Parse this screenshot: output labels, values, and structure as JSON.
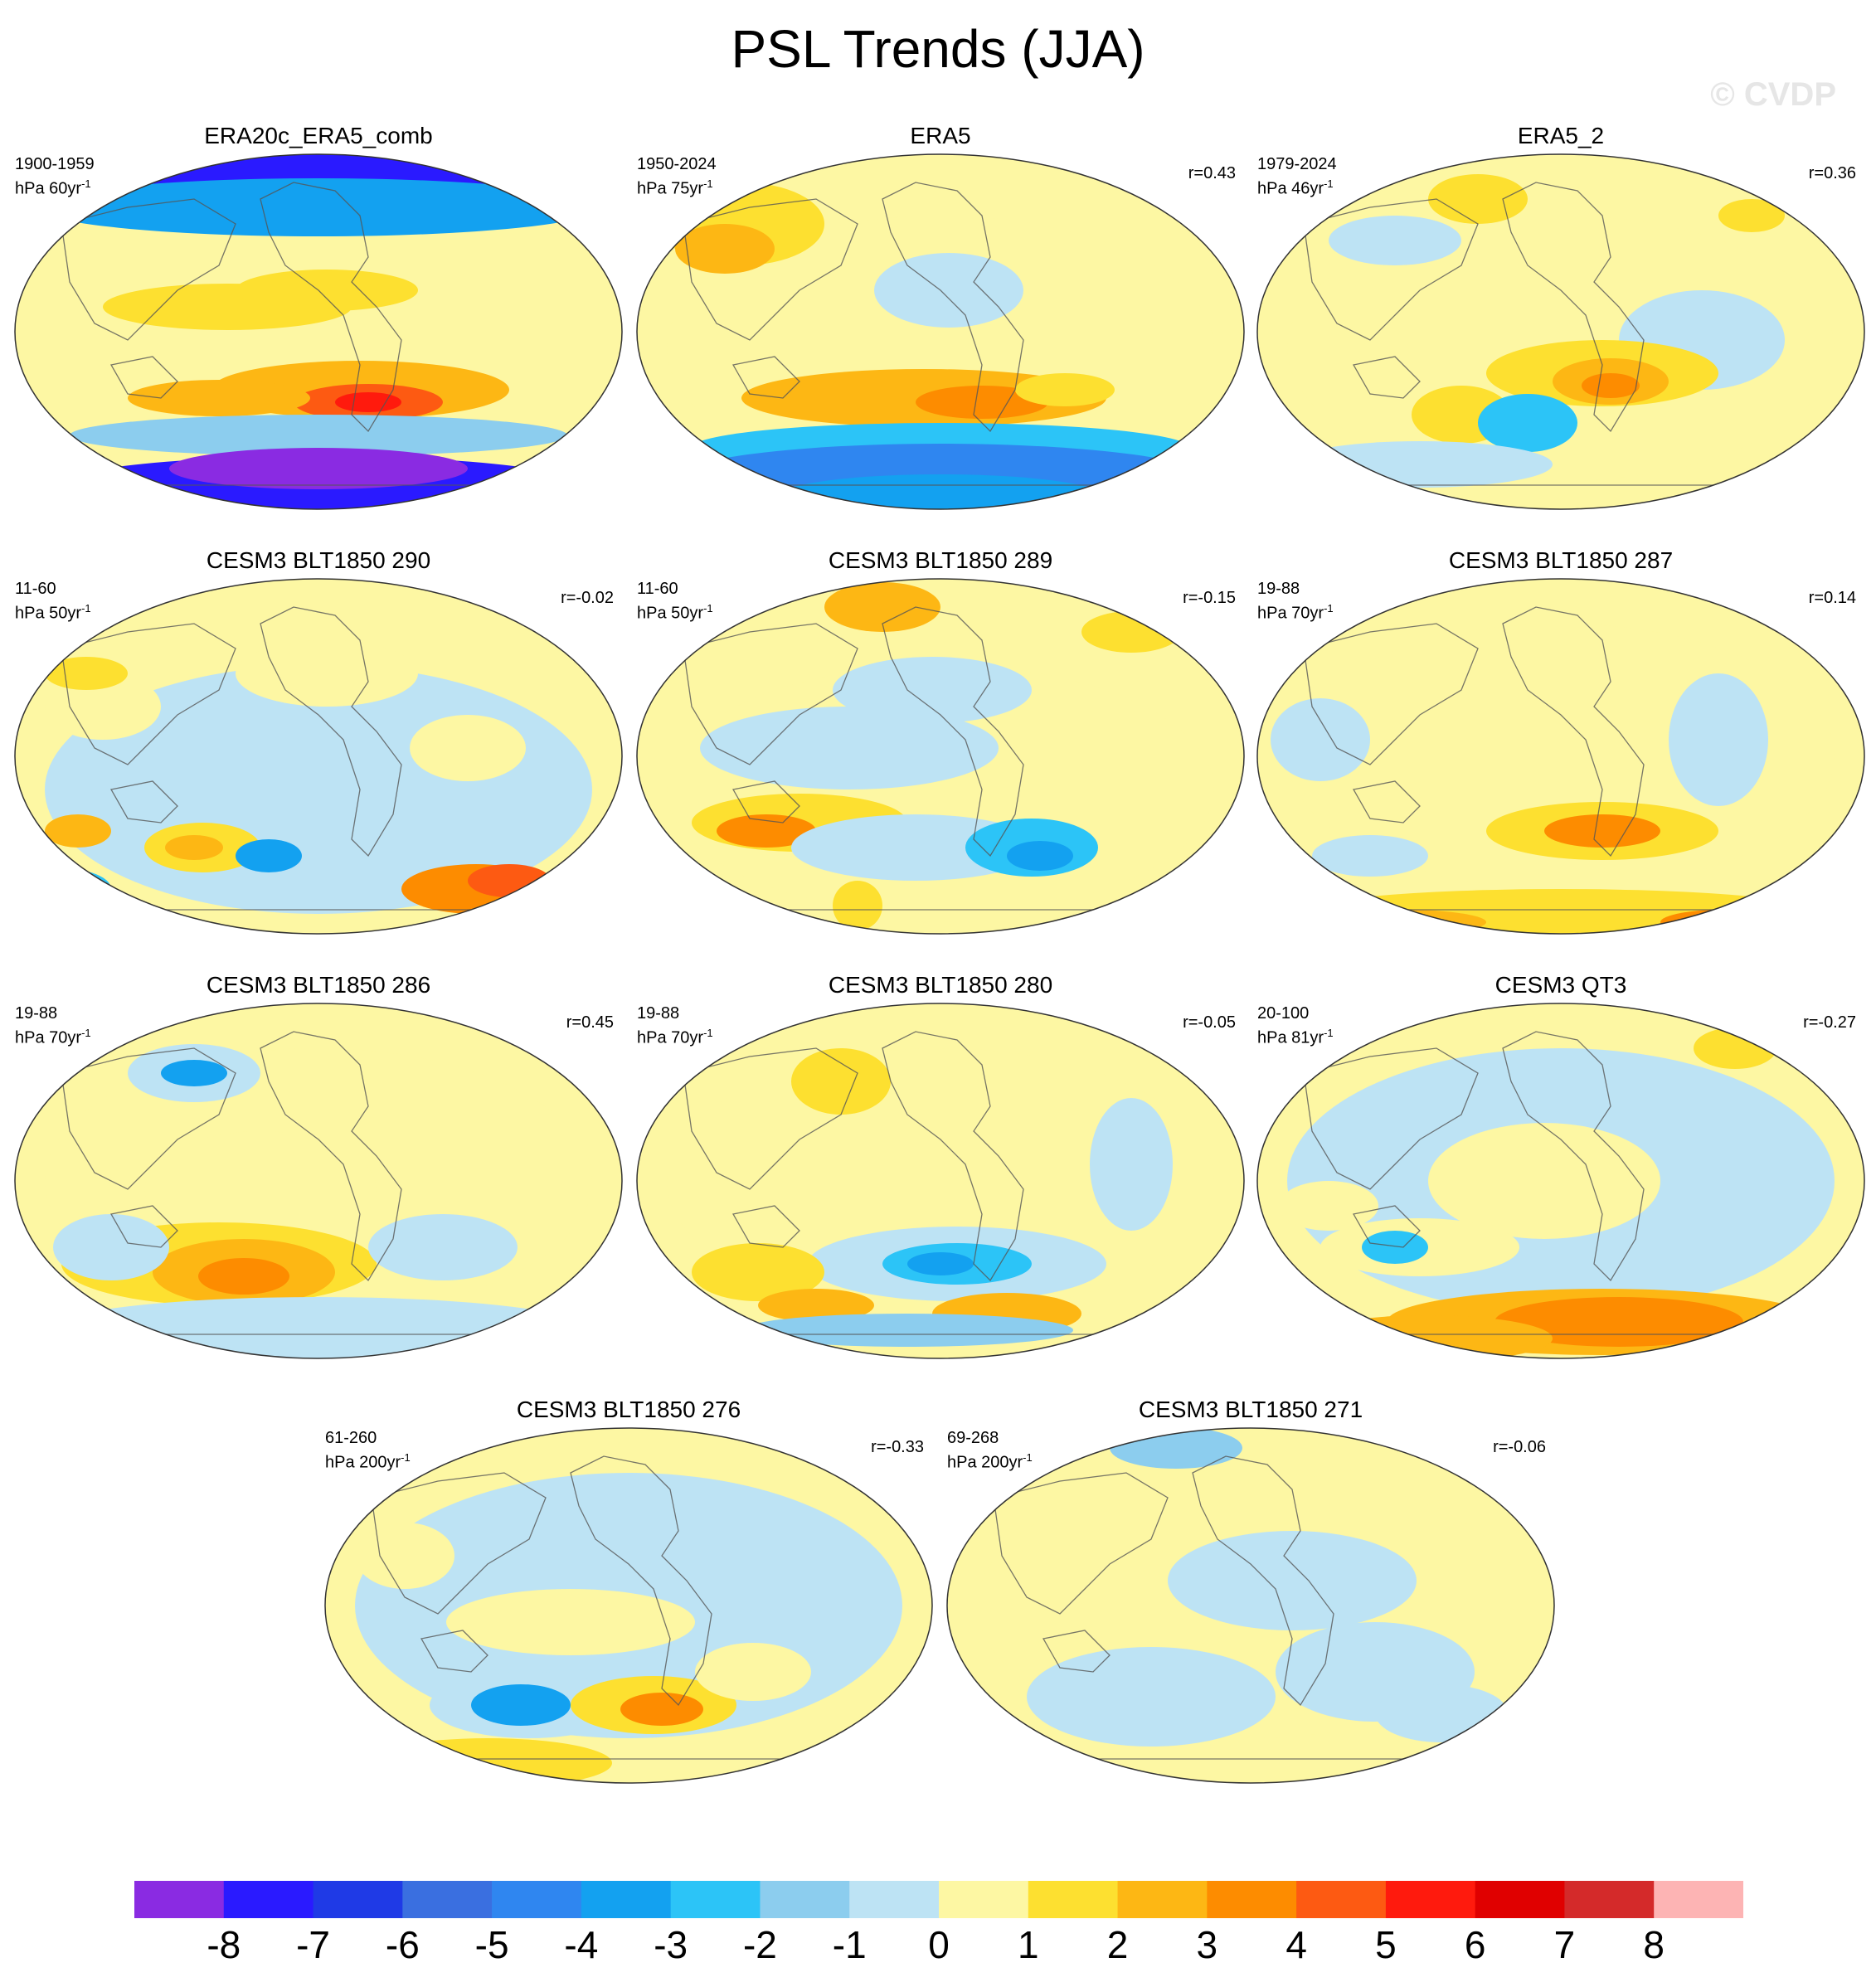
{
  "title": "PSL Trends (JJA)",
  "watermark": "© CVDP",
  "colors": {
    "land_outline": "#555555",
    "border": "#333333"
  },
  "colorbar": {
    "colors": [
      "#8a2be2",
      "#2a1aff",
      "#1f3ae6",
      "#3a6fe0",
      "#2f86f0",
      "#13a1f0",
      "#2cc4f7",
      "#8ccdee",
      "#bde3f4",
      "#fdf7a3",
      "#fde030",
      "#fdb714",
      "#fd8c00",
      "#fd5a12",
      "#ff1a0d",
      "#e00000",
      "#d42a2a",
      "#fdb4b4"
    ],
    "labels": [
      "-8",
      "-7",
      "-6",
      "-5",
      "-4",
      "-3",
      "-2",
      "-1",
      "0",
      "1",
      "2",
      "3",
      "4",
      "5",
      "6",
      "7",
      "8"
    ]
  },
  "panels": [
    {
      "title": "ERA20c_ERA5_comb",
      "period": "1900-1959",
      "units": "hPa 60yr",
      "exp": "-1",
      "r": ""
    },
    {
      "title": "ERA5",
      "period": "1950-2024",
      "units": "hPa 75yr",
      "exp": "-1",
      "r": "r=0.43"
    },
    {
      "title": "ERA5_2",
      "period": "1979-2024",
      "units": "hPa 46yr",
      "exp": "-1",
      "r": "r=0.36"
    },
    {
      "title": "CESM3 BLT1850 290",
      "period": "11-60",
      "units": "hPa 50yr",
      "exp": "-1",
      "r": "r=-0.02"
    },
    {
      "title": "CESM3 BLT1850 289",
      "period": "11-60",
      "units": "hPa 50yr",
      "exp": "-1",
      "r": "r=-0.15"
    },
    {
      "title": "CESM3 BLT1850 287",
      "period": "19-88",
      "units": "hPa 70yr",
      "exp": "-1",
      "r": "r=0.14"
    },
    {
      "title": "CESM3 BLT1850 286",
      "period": "19-88",
      "units": "hPa 70yr",
      "exp": "-1",
      "r": "r=0.45"
    },
    {
      "title": "CESM3 BLT1850 280",
      "period": "19-88",
      "units": "hPa 70yr",
      "exp": "-1",
      "r": "r=-0.05"
    },
    {
      "title": "CESM3 QT3",
      "period": "20-100",
      "units": "hPa 81yr",
      "exp": "-1",
      "r": "r=-0.27"
    },
    {
      "title": "CESM3 BLT1850 276",
      "period": "61-260",
      "units": "hPa 200yr",
      "exp": "-1",
      "r": "r=-0.33"
    },
    {
      "title": "CESM3 BLT1850 271",
      "period": "69-268",
      "units": "hPa 200yr",
      "exp": "-1",
      "r": "r=-0.06"
    }
  ]
}
